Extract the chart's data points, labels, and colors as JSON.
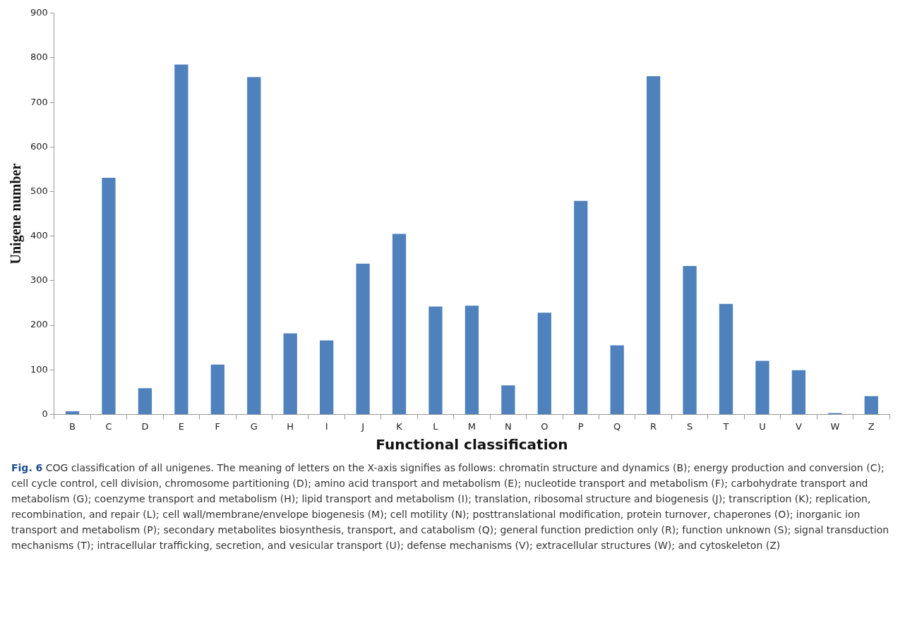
{
  "chart_data": {
    "type": "bar",
    "title": "Fig. 6",
    "annotations": [
      "COG classification of all unigenes. The meaning of letters on the X-axis signifies as follows: chromatin structure and dynamics (B); energy production and conversion (C); cell cycle control, cell division, chromosome partitioning (D); amino acid transport and metabolism (E); nucleotide transport and metabolism (F); carbohydrate transport and metabolism (G); coenzyme transport and metabolism (H); lipid transport and metabolism (I); translation, ribosomal structure and biogenesis (J); transcription (K); replication, recombination, and repair (L); cell wall/membrane/envelope biogenesis (M); cell motility (N); posttranslational modification, protein turnover, chaperones (O); inorganic ion transport and metabolism (P); secondary metabolites biosynthesis, transport, and catabolism (Q); general function prediction only (R); function unknown (S); signal transduction mechanisms (T); intracellular trafficking, secretion, and vesicular transport (U); defense mechanisms (V); extracellular structures (W); and cytoskeleton (Z)"
    ],
    "xlabel": "Functional classification",
    "ylabel": "Unigene number",
    "categories": [
      "B",
      "C",
      "D",
      "E",
      "F",
      "G",
      "H",
      "I",
      "J",
      "K",
      "L",
      "M",
      "N",
      "O",
      "P",
      "Q",
      "R",
      "S",
      "T",
      "U",
      "V",
      "W",
      "Z"
    ],
    "values": [
      7,
      531,
      59,
      785,
      112,
      757,
      182,
      166,
      338,
      405,
      242,
      244,
      65,
      228,
      479,
      155,
      759,
      333,
      248,
      120,
      99,
      3,
      41
    ],
    "color": "#4f81bd",
    "ylim": [
      0,
      900
    ],
    "yticks": [
      0,
      100,
      200,
      300,
      400,
      500,
      600,
      700,
      800,
      900
    ],
    "grid": false
  }
}
